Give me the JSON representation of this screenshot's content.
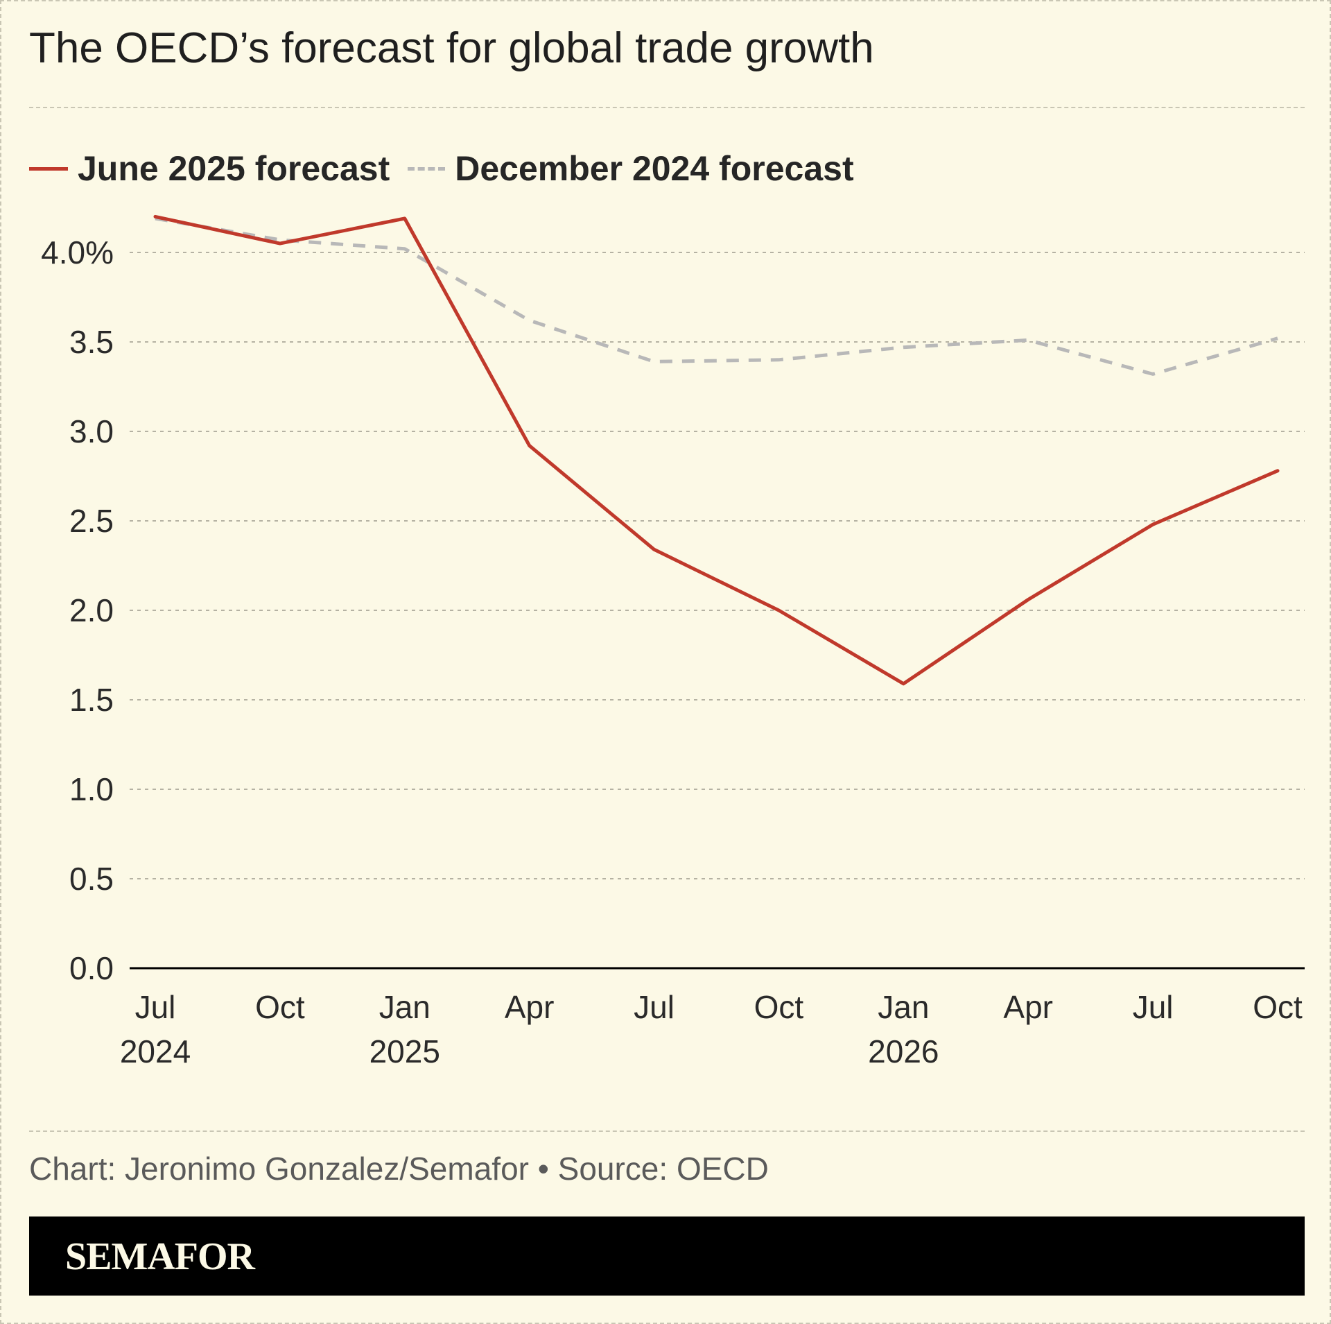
{
  "title": "The OECD’s forecast for global trade growth",
  "legend": {
    "june": "June 2025 forecast",
    "december": "December 2024 forecast"
  },
  "source": "Chart: Jeronimo Gonzalez/Semafor • Source: OECD",
  "logo": "SEMAFOR",
  "colors": {
    "background": "#fcf9e6",
    "june_line": "#c0392b",
    "december_line": "#b8b8b8",
    "grid": "#b5b2a3",
    "footer": "#000000"
  },
  "chart_data": {
    "type": "line",
    "title": "The OECD’s forecast for global trade growth",
    "xlabel": "",
    "ylabel": "",
    "ylim": [
      0,
      4.0
    ],
    "yticks": [
      0.0,
      0.5,
      1.0,
      1.5,
      2.0,
      2.5,
      3.0,
      3.5,
      4.0
    ],
    "ytick_labels": [
      "0.0",
      "0.5",
      "1.0",
      "1.5",
      "2.0",
      "2.5",
      "3.0",
      "3.5",
      "4.0%"
    ],
    "categories": [
      "Jul 2024",
      "Oct 2024",
      "Jan 2025",
      "Apr 2025",
      "Jul 2025",
      "Oct 2025",
      "Jan 2026",
      "Apr 2026",
      "Jul 2026",
      "Oct 2026"
    ],
    "xtick_labels": [
      [
        "Jul",
        "2024"
      ],
      [
        "Oct",
        ""
      ],
      [
        "Jan",
        "2025"
      ],
      [
        "Apr",
        ""
      ],
      [
        "Jul",
        ""
      ],
      [
        "Oct",
        ""
      ],
      [
        "Jan",
        "2026"
      ],
      [
        "Apr",
        ""
      ],
      [
        "Jul",
        ""
      ],
      [
        "Oct",
        ""
      ]
    ],
    "series": [
      {
        "name": "June 2025 forecast",
        "style": "solid",
        "values": [
          4.2,
          4.05,
          4.19,
          2.92,
          2.34,
          2.0,
          1.59,
          2.06,
          2.48,
          2.78
        ]
      },
      {
        "name": "December 2024 forecast",
        "style": "dashed",
        "values": [
          4.19,
          4.07,
          4.02,
          3.62,
          3.39,
          3.4,
          3.47,
          3.51,
          3.32,
          3.52
        ]
      }
    ],
    "grid": true,
    "legend_position": "top-left"
  }
}
